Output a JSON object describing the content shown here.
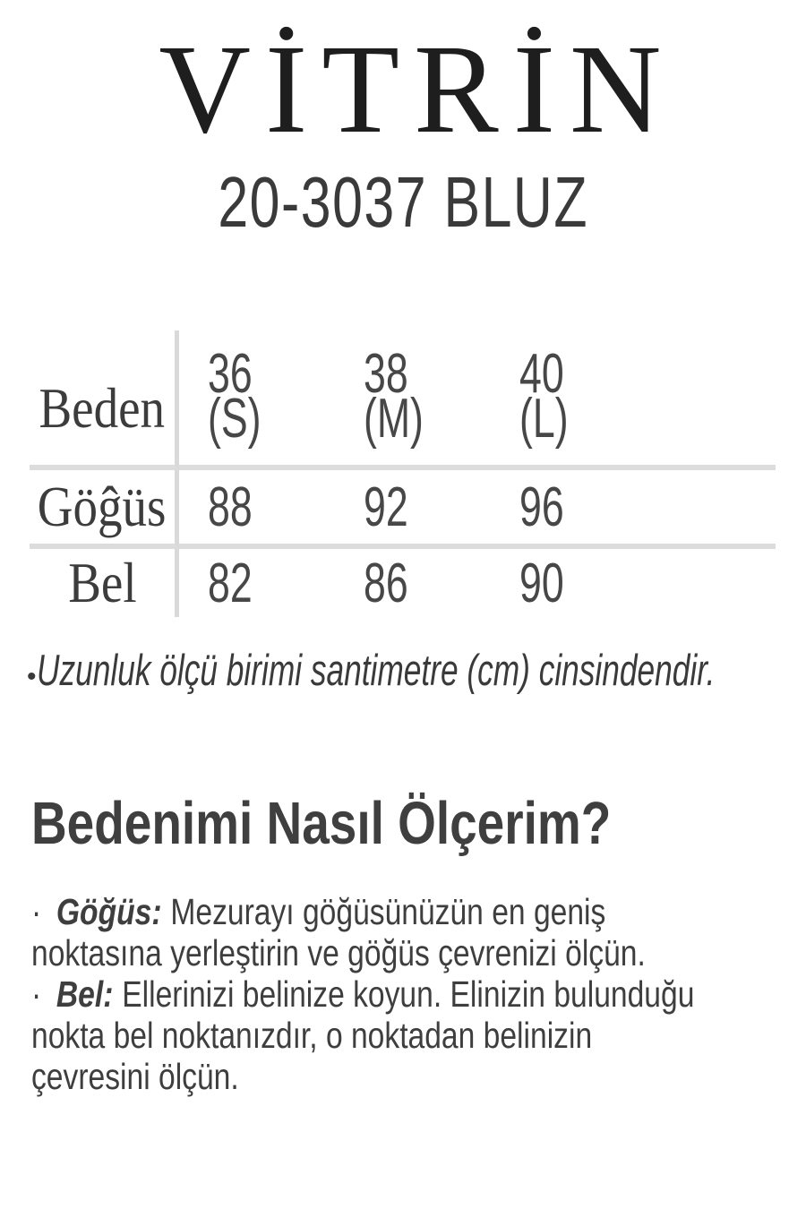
{
  "page": {
    "background": "#ffffff",
    "text_color": "#3a3a3a",
    "line_color": "#dcdcdc"
  },
  "header": {
    "brand": "VİTRİN",
    "product_code": "20-3037 BLUZ"
  },
  "size_table": {
    "unit_note_implied": "cm",
    "columns": [
      {
        "size": "36",
        "label": "(S)"
      },
      {
        "size": "38",
        "label": "(M)"
      },
      {
        "size": "40",
        "label": "(L)"
      }
    ],
    "rows": [
      {
        "label": "Beden"
      },
      {
        "label": "Göĝüs",
        "values": [
          "88",
          "92",
          "96"
        ]
      },
      {
        "label": "Bel",
        "values": [
          "82",
          "86",
          "90"
        ]
      }
    ]
  },
  "note": {
    "bullet": "•",
    "text": "Uzunluk ölçü birimi santimetre (cm) cinsindendir."
  },
  "how_to": {
    "heading": "Bedenimi Nasıl Ölçerim?",
    "items": [
      {
        "bullet": "·",
        "term": "Göğüs:",
        "lines": [
          "Mezurayı göğüsünüzün en geniş",
          "noktasına yerleştirin ve göğüs çevrenizi ölçün."
        ]
      },
      {
        "bullet": "·",
        "term": "Bel:",
        "lines": [
          "Ellerinizi belinize koyun. Elinizin bulunduğu",
          "nokta bel noktanızdır, o noktadan belinizin",
          "çevresini ölçün."
        ]
      }
    ]
  }
}
